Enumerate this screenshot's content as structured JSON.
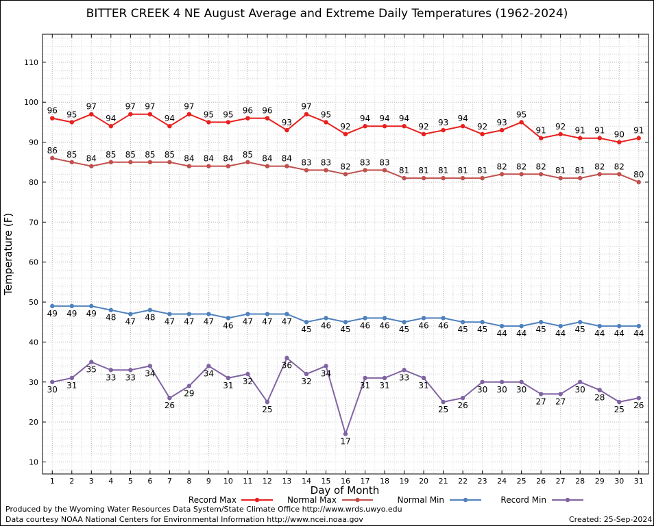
{
  "chart_data": {
    "type": "line",
    "title": "BITTER CREEK 4 NE August Average and Extreme Daily Temperatures (1962-2024)",
    "xlabel": "Day of Month",
    "ylabel": "Temperature (F)",
    "xlim": [
      0.5,
      31.5
    ],
    "ylim": [
      7,
      117
    ],
    "yticks": [
      10,
      20,
      30,
      40,
      50,
      60,
      70,
      80,
      90,
      100,
      110
    ],
    "grid": true,
    "legend_position": "bottom",
    "categories": [
      "1",
      "2",
      "3",
      "4",
      "5",
      "6",
      "7",
      "8",
      "9",
      "10",
      "11",
      "12",
      "13",
      "14",
      "15",
      "16",
      "17",
      "18",
      "19",
      "20",
      "21",
      "22",
      "23",
      "24",
      "25",
      "26",
      "27",
      "28",
      "29",
      "30",
      "31"
    ],
    "series": [
      {
        "name": "Record Max",
        "color": "#e8201e",
        "label_position": "above",
        "values": [
          96,
          95,
          97,
          94,
          97,
          97,
          94,
          97,
          95,
          95,
          96,
          96,
          93,
          97,
          95,
          92,
          94,
          94,
          94,
          92,
          93,
          94,
          92,
          93,
          95,
          91,
          92,
          91,
          91,
          90,
          91
        ]
      },
      {
        "name": "Normal Max",
        "color": "#c0504d",
        "label_position": "above",
        "values": [
          86,
          85,
          84,
          85,
          85,
          85,
          85,
          84,
          84,
          84,
          85,
          84,
          84,
          83,
          83,
          82,
          83,
          83,
          81,
          81,
          81,
          81,
          81,
          82,
          82,
          82,
          81,
          81,
          82,
          82,
          80
        ]
      },
      {
        "name": "Normal Min",
        "color": "#4f81bd",
        "label_position": "below",
        "values": [
          49,
          49,
          49,
          48,
          47,
          48,
          47,
          47,
          47,
          46,
          47,
          47,
          47,
          45,
          46,
          45,
          46,
          46,
          45,
          46,
          46,
          45,
          45,
          44,
          44,
          45,
          44,
          45,
          44,
          44,
          44
        ]
      },
      {
        "name": "Record Min",
        "color": "#8064a2",
        "label_position": "below",
        "values": [
          30,
          31,
          35,
          33,
          33,
          34,
          26,
          29,
          34,
          31,
          32,
          25,
          36,
          32,
          34,
          17,
          31,
          31,
          33,
          31,
          25,
          26,
          30,
          30,
          30,
          27,
          27,
          30,
          28,
          25,
          26
        ]
      }
    ]
  },
  "footer": {
    "credit_line1": "Produced by the Wyoming Water Resources Data System/State Climate Office http://www.wrds.uwyo.edu",
    "credit_line2": "Data courtesy NOAA National Centers for Environmental Information http://www.ncei.noaa.gov",
    "created": "Created:  25-Sep-2024"
  }
}
